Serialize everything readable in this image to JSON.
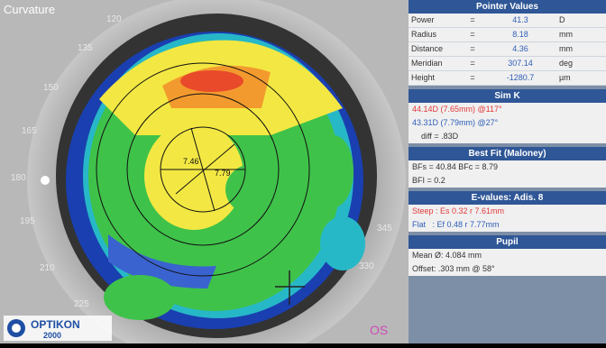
{
  "map": {
    "title": "Curvature",
    "eye": "OS",
    "logo_top": "OPTIKON",
    "logo_bottom": "2000",
    "ring_labels": {
      "inner_left": "7.46",
      "inner_right": "7.79"
    },
    "axis_labels": {
      "a120": "120",
      "a135": "135",
      "a150": "150",
      "a165": "165",
      "a180": "180",
      "a195": "195",
      "a210": "210",
      "a225": "225",
      "a330": "330",
      "a345": "345"
    }
  },
  "pointer_values": {
    "title": "Pointer Values",
    "rows": [
      {
        "label": "Power",
        "eq": "=",
        "value": "41.3",
        "unit": "D"
      },
      {
        "label": "Radius",
        "eq": "=",
        "value": "8.18",
        "unit": "mm"
      },
      {
        "label": "Distance",
        "eq": "=",
        "value": "4.36",
        "unit": "mm"
      },
      {
        "label": "Meridian",
        "eq": "=",
        "value": "307.14",
        "unit": "deg"
      },
      {
        "label": "Height",
        "eq": "=",
        "value": "-1280.7",
        "unit": "µm"
      }
    ]
  },
  "sim_k": {
    "title": "Sim K",
    "steep": "44.14D (7.65mm) @117°",
    "flat": "43.31D (7.79mm) @27°",
    "diff": "diff = .83D"
  },
  "best_fit": {
    "title": "Best Fit (Maloney)",
    "line1": "BFs = 40.84 BFc = 8.79",
    "line2": "BFI = 0.2"
  },
  "e_values": {
    "title": "E-values: Adis. 8",
    "steep": "Steep : Es 0.32 r 7.61mm",
    "flat": "Flat   : Ef 0.48 r 7.77mm"
  },
  "pupil": {
    "title": "Pupil",
    "mean": "Mean Ø: 4.084 mm",
    "offset": "Offset: .303 mm @ 58°"
  },
  "colors": {
    "panel_bg": "#7d8fa6",
    "title_bar": "#2f5696",
    "steep_red": "#e23a3a",
    "flat_blue": "#2f5eb8",
    "eye_marker": "#d04ab8"
  }
}
